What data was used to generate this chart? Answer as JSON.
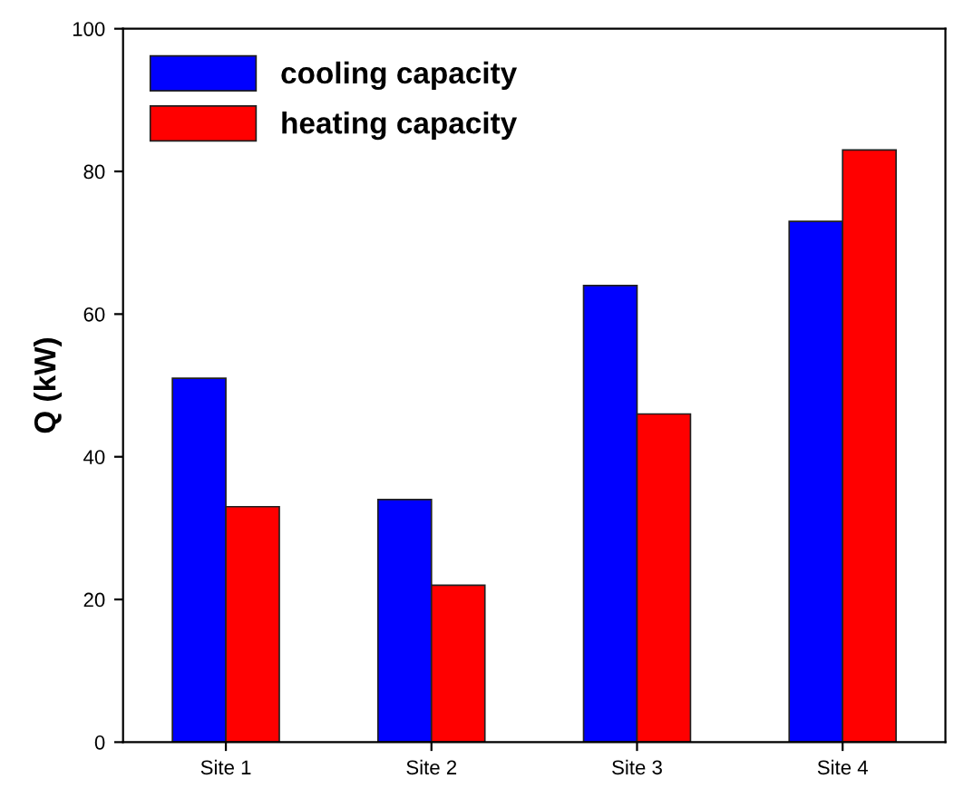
{
  "chart_data": {
    "type": "bar",
    "ylabel": "Q (kW)",
    "categories": [
      "Site 1",
      "Site 2",
      "Site 3",
      "Site 4"
    ],
    "series": [
      {
        "name": "cooling capacity",
        "color": "#0000ff",
        "values": [
          51,
          34,
          64,
          73
        ]
      },
      {
        "name": "heating capacity",
        "color": "#ff0000",
        "values": [
          33,
          22,
          46,
          83
        ]
      }
    ],
    "ylim": [
      0,
      100
    ],
    "yticks": [
      0,
      20,
      40,
      60,
      80,
      100
    ],
    "grid": false,
    "legend": "top left"
  }
}
